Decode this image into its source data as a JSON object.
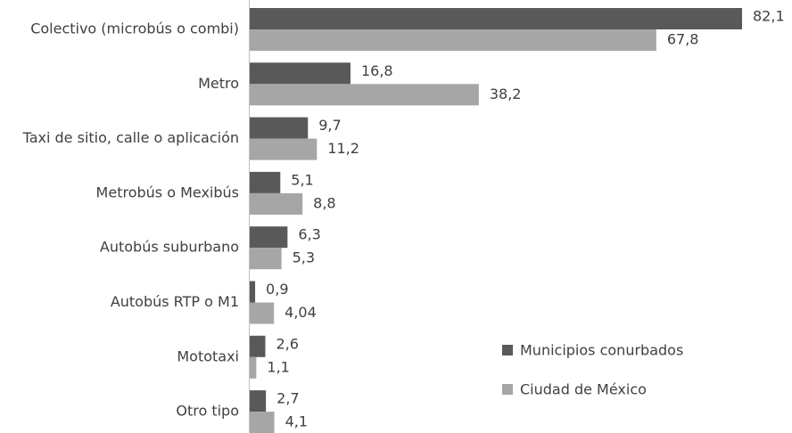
{
  "chart_data": {
    "type": "barh",
    "categories": [
      "Colectivo (microbús o combi)",
      "Metro",
      "Taxi de sitio, calle o aplicación",
      "Metrobús o Mexibús",
      "Autobús suburbano",
      "Autobús RTP o M1",
      "Mototaxi",
      "Otro tipo"
    ],
    "series": [
      {
        "name": "Municipios conurbados",
        "color": "#595959",
        "values": [
          82.1,
          16.8,
          9.7,
          5.1,
          6.3,
          0.9,
          2.6,
          2.7
        ],
        "value_labels": [
          "82,1",
          "16,8",
          "9,7",
          "5,1",
          "6,3",
          "0,9",
          "2,6",
          "2,7"
        ]
      },
      {
        "name": "Ciudad de México",
        "color": "#a6a6a6",
        "values": [
          67.8,
          38.2,
          11.2,
          8.8,
          5.3,
          4.04,
          1.1,
          4.1
        ],
        "value_labels": [
          "67,8",
          "38,2",
          "11,2",
          "8,8",
          "5,3",
          "4,04",
          "1,1",
          "4,1"
        ]
      }
    ],
    "legend": "lower right"
  }
}
